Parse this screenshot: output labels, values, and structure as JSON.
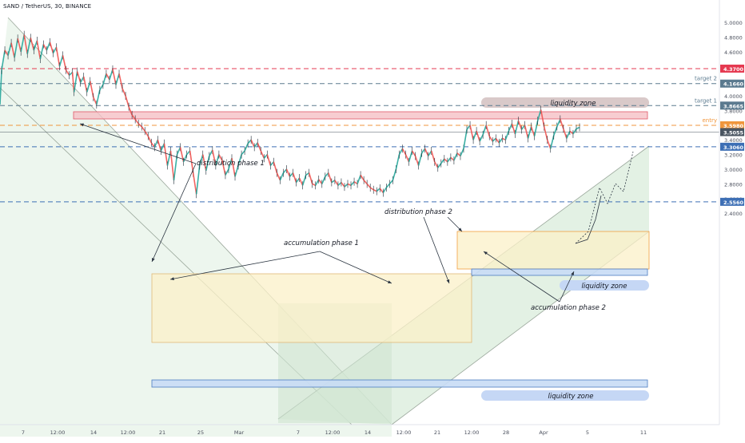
{
  "header": {
    "symbol_line": "SAND / TetherUS, 30, BINANCE"
  },
  "chart_data": {
    "type": "candlestick",
    "symbol": "SAND / TetherUS",
    "interval": "30",
    "exchange": "BINANCE",
    "price_axis": {
      "ticks": [
        "5.0000",
        "4.8000",
        "4.6000",
        "4.4000",
        "4.2000",
        "4.0000",
        "3.8000",
        "3.6000",
        "3.4000",
        "3.2000",
        "3.0000",
        "2.8000",
        "2.6000",
        "2.4000"
      ],
      "ylim": [
        2.32,
        5.08
      ],
      "scale": "linear"
    },
    "time_axis": {
      "ticks": [
        "7",
        "12:00",
        "14",
        "12:00",
        "21",
        "25",
        "Mar",
        "7",
        "12:00",
        "14",
        "12:00",
        "21",
        "12:00",
        "28",
        "Apr",
        "5",
        "11"
      ]
    },
    "price_path": [
      [
        0,
        3.88
      ],
      [
        2,
        4.35
      ],
      [
        6,
        4.62
      ],
      [
        10,
        4.55
      ],
      [
        14,
        4.72
      ],
      [
        18,
        4.52
      ],
      [
        22,
        4.78
      ],
      [
        26,
        4.6
      ],
      [
        30,
        4.83
      ],
      [
        34,
        4.57
      ],
      [
        38,
        4.79
      ],
      [
        42,
        4.62
      ],
      [
        46,
        4.75
      ],
      [
        50,
        4.5
      ],
      [
        54,
        4.7
      ],
      [
        58,
        4.62
      ],
      [
        62,
        4.73
      ],
      [
        66,
        4.58
      ],
      [
        70,
        4.66
      ],
      [
        74,
        4.4
      ],
      [
        78,
        4.55
      ],
      [
        82,
        4.35
      ],
      [
        86,
        4.28
      ],
      [
        90,
        4.32
      ],
      [
        92,
        4.05
      ],
      [
        96,
        4.33
      ],
      [
        100,
        4.18
      ],
      [
        104,
        4.26
      ],
      [
        108,
        4.05
      ],
      [
        112,
        4.2
      ],
      [
        116,
        3.98
      ],
      [
        120,
        3.88
      ],
      [
        124,
        4.08
      ],
      [
        128,
        4.15
      ],
      [
        132,
        4.3
      ],
      [
        136,
        4.22
      ],
      [
        140,
        4.36
      ],
      [
        144,
        4.15
      ],
      [
        148,
        4.3
      ],
      [
        152,
        4.1
      ],
      [
        156,
        4.0
      ],
      [
        160,
        3.85
      ],
      [
        164,
        3.74
      ],
      [
        168,
        3.68
      ],
      [
        172,
        3.62
      ],
      [
        176,
        3.58
      ],
      [
        180,
        3.52
      ],
      [
        184,
        3.45
      ],
      [
        188,
        3.36
      ],
      [
        192,
        3.3
      ],
      [
        196,
        3.4
      ],
      [
        200,
        3.25
      ],
      [
        204,
        3.35
      ],
      [
        208,
        3.05
      ],
      [
        212,
        3.25
      ],
      [
        216,
        2.85
      ],
      [
        220,
        3.2
      ],
      [
        224,
        3.3
      ],
      [
        228,
        3.1
      ],
      [
        232,
        3.2
      ],
      [
        236,
        3.25
      ],
      [
        240,
        2.95
      ],
      [
        244,
        2.66
      ],
      [
        248,
        3.05
      ],
      [
        252,
        3.2
      ],
      [
        256,
        2.98
      ],
      [
        260,
        3.18
      ],
      [
        264,
        3.26
      ],
      [
        268,
        3.05
      ],
      [
        272,
        3.2
      ],
      [
        276,
        3.12
      ],
      [
        280,
        2.92
      ],
      [
        284,
        3.0
      ],
      [
        288,
        3.15
      ],
      [
        292,
        2.9
      ],
      [
        296,
        3.05
      ],
      [
        300,
        3.2
      ],
      [
        304,
        3.25
      ],
      [
        308,
        3.35
      ],
      [
        312,
        3.4
      ],
      [
        316,
        3.3
      ],
      [
        320,
        3.36
      ],
      [
        324,
        3.25
      ],
      [
        328,
        3.15
      ],
      [
        332,
        3.2
      ],
      [
        336,
        3.05
      ],
      [
        340,
        3.1
      ],
      [
        344,
        2.95
      ],
      [
        348,
        2.85
      ],
      [
        352,
        2.95
      ],
      [
        356,
        3.0
      ],
      [
        360,
        2.9
      ],
      [
        364,
        2.95
      ],
      [
        368,
        2.82
      ],
      [
        372,
        2.88
      ],
      [
        376,
        2.78
      ],
      [
        380,
        2.92
      ],
      [
        384,
        2.95
      ],
      [
        388,
        2.8
      ],
      [
        392,
        2.78
      ],
      [
        396,
        2.86
      ],
      [
        400,
        2.8
      ],
      [
        404,
        2.9
      ],
      [
        408,
        2.95
      ],
      [
        412,
        2.82
      ],
      [
        416,
        2.85
      ],
      [
        420,
        2.78
      ],
      [
        424,
        2.82
      ],
      [
        428,
        2.76
      ],
      [
        432,
        2.8
      ],
      [
        436,
        2.78
      ],
      [
        440,
        2.83
      ],
      [
        444,
        2.8
      ],
      [
        448,
        2.92
      ],
      [
        452,
        2.85
      ],
      [
        456,
        2.8
      ],
      [
        460,
        2.75
      ],
      [
        464,
        2.72
      ],
      [
        468,
        2.7
      ],
      [
        472,
        2.74
      ],
      [
        476,
        2.68
      ],
      [
        480,
        2.75
      ],
      [
        484,
        2.8
      ],
      [
        488,
        2.85
      ],
      [
        492,
        3.0
      ],
      [
        496,
        3.2
      ],
      [
        500,
        3.28
      ],
      [
        504,
        3.2
      ],
      [
        508,
        3.1
      ],
      [
        512,
        3.25
      ],
      [
        516,
        3.18
      ],
      [
        520,
        3.05
      ],
      [
        524,
        3.22
      ],
      [
        528,
        3.28
      ],
      [
        532,
        3.18
      ],
      [
        536,
        3.25
      ],
      [
        540,
        3.1
      ],
      [
        544,
        3.02
      ],
      [
        548,
        3.08
      ],
      [
        552,
        3.14
      ],
      [
        556,
        3.1
      ],
      [
        560,
        3.16
      ],
      [
        564,
        3.12
      ],
      [
        568,
        3.22
      ],
      [
        572,
        3.18
      ],
      [
        576,
        3.28
      ],
      [
        580,
        3.54
      ],
      [
        584,
        3.6
      ],
      [
        588,
        3.4
      ],
      [
        592,
        3.52
      ],
      [
        596,
        3.38
      ],
      [
        600,
        3.47
      ],
      [
        604,
        3.6
      ],
      [
        608,
        3.45
      ],
      [
        612,
        3.38
      ],
      [
        616,
        3.42
      ],
      [
        620,
        3.36
      ],
      [
        624,
        3.42
      ],
      [
        628,
        3.4
      ],
      [
        632,
        3.52
      ],
      [
        636,
        3.62
      ],
      [
        640,
        3.48
      ],
      [
        644,
        3.66
      ],
      [
        648,
        3.54
      ],
      [
        652,
        3.6
      ],
      [
        656,
        3.42
      ],
      [
        660,
        3.58
      ],
      [
        664,
        3.45
      ],
      [
        668,
        3.66
      ],
      [
        672,
        3.81
      ],
      [
        676,
        3.58
      ],
      [
        680,
        3.4
      ],
      [
        684,
        3.28
      ],
      [
        688,
        3.46
      ],
      [
        692,
        3.58
      ],
      [
        696,
        3.68
      ],
      [
        700,
        3.55
      ],
      [
        704,
        3.42
      ],
      [
        708,
        3.52
      ],
      [
        712,
        3.48
      ],
      [
        716,
        3.55
      ],
      [
        720,
        3.57
      ]
    ],
    "horizontal_levels": [
      {
        "value": 4.37,
        "label": "4.3700",
        "color": "#e53950",
        "style": "dashed"
      },
      {
        "value": 4.166,
        "label": "4.1660",
        "color": "#5b7a8f",
        "style": "dashed",
        "tag": "target 2"
      },
      {
        "value": 3.8665,
        "label": "3.8665",
        "color": "#5b7a8f",
        "style": "dashed",
        "tag": "target 1"
      },
      {
        "value": 3.598,
        "label": "3.5980",
        "color": "#f0963c",
        "style": "dashed",
        "tag": "entry"
      },
      {
        "value": 3.5055,
        "label": "3.5055",
        "color": "#4a5561",
        "style": "solid"
      },
      {
        "value": 3.306,
        "label": "3.3060",
        "color": "#3d6fb5",
        "style": "dashed"
      },
      {
        "value": 2.556,
        "label": "2.5560",
        "color": "#3d6fb5",
        "style": "dashed"
      }
    ],
    "annotations": [
      {
        "text": "distribution phase 1"
      },
      {
        "text": "accumulation phase 1"
      },
      {
        "text": "distribution phase 2"
      },
      {
        "text": "accumulation phase 2"
      },
      {
        "text": "liquidity zone"
      },
      {
        "text": "liquidity zone"
      },
      {
        "text": "liquidity zone"
      }
    ],
    "colors": {
      "up": "#26a69a",
      "down": "#ef5350",
      "bg": "#ffffff"
    }
  }
}
